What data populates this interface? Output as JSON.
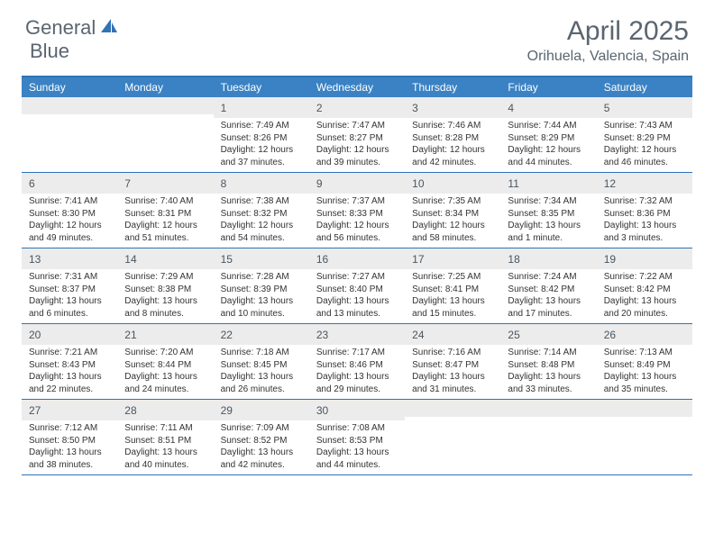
{
  "logo": {
    "part1": "General",
    "part2": "Blue"
  },
  "title": "April 2025",
  "location": "Orihuela, Valencia, Spain",
  "colors": {
    "header_bg": "#3b82c4",
    "rule": "#2f74b5",
    "daynum_bg": "#ececec",
    "text": "#333333",
    "muted": "#5a6570",
    "logo_accent": "#2f74b5"
  },
  "day_names": [
    "Sunday",
    "Monday",
    "Tuesday",
    "Wednesday",
    "Thursday",
    "Friday",
    "Saturday"
  ],
  "weeks": [
    [
      {
        "n": "",
        "lines": []
      },
      {
        "n": "",
        "lines": []
      },
      {
        "n": "1",
        "lines": [
          "Sunrise: 7:49 AM",
          "Sunset: 8:26 PM",
          "Daylight: 12 hours and 37 minutes."
        ]
      },
      {
        "n": "2",
        "lines": [
          "Sunrise: 7:47 AM",
          "Sunset: 8:27 PM",
          "Daylight: 12 hours and 39 minutes."
        ]
      },
      {
        "n": "3",
        "lines": [
          "Sunrise: 7:46 AM",
          "Sunset: 8:28 PM",
          "Daylight: 12 hours and 42 minutes."
        ]
      },
      {
        "n": "4",
        "lines": [
          "Sunrise: 7:44 AM",
          "Sunset: 8:29 PM",
          "Daylight: 12 hours and 44 minutes."
        ]
      },
      {
        "n": "5",
        "lines": [
          "Sunrise: 7:43 AM",
          "Sunset: 8:29 PM",
          "Daylight: 12 hours and 46 minutes."
        ]
      }
    ],
    [
      {
        "n": "6",
        "lines": [
          "Sunrise: 7:41 AM",
          "Sunset: 8:30 PM",
          "Daylight: 12 hours and 49 minutes."
        ]
      },
      {
        "n": "7",
        "lines": [
          "Sunrise: 7:40 AM",
          "Sunset: 8:31 PM",
          "Daylight: 12 hours and 51 minutes."
        ]
      },
      {
        "n": "8",
        "lines": [
          "Sunrise: 7:38 AM",
          "Sunset: 8:32 PM",
          "Daylight: 12 hours and 54 minutes."
        ]
      },
      {
        "n": "9",
        "lines": [
          "Sunrise: 7:37 AM",
          "Sunset: 8:33 PM",
          "Daylight: 12 hours and 56 minutes."
        ]
      },
      {
        "n": "10",
        "lines": [
          "Sunrise: 7:35 AM",
          "Sunset: 8:34 PM",
          "Daylight: 12 hours and 58 minutes."
        ]
      },
      {
        "n": "11",
        "lines": [
          "Sunrise: 7:34 AM",
          "Sunset: 8:35 PM",
          "Daylight: 13 hours and 1 minute."
        ]
      },
      {
        "n": "12",
        "lines": [
          "Sunrise: 7:32 AM",
          "Sunset: 8:36 PM",
          "Daylight: 13 hours and 3 minutes."
        ]
      }
    ],
    [
      {
        "n": "13",
        "lines": [
          "Sunrise: 7:31 AM",
          "Sunset: 8:37 PM",
          "Daylight: 13 hours and 6 minutes."
        ]
      },
      {
        "n": "14",
        "lines": [
          "Sunrise: 7:29 AM",
          "Sunset: 8:38 PM",
          "Daylight: 13 hours and 8 minutes."
        ]
      },
      {
        "n": "15",
        "lines": [
          "Sunrise: 7:28 AM",
          "Sunset: 8:39 PM",
          "Daylight: 13 hours and 10 minutes."
        ]
      },
      {
        "n": "16",
        "lines": [
          "Sunrise: 7:27 AM",
          "Sunset: 8:40 PM",
          "Daylight: 13 hours and 13 minutes."
        ]
      },
      {
        "n": "17",
        "lines": [
          "Sunrise: 7:25 AM",
          "Sunset: 8:41 PM",
          "Daylight: 13 hours and 15 minutes."
        ]
      },
      {
        "n": "18",
        "lines": [
          "Sunrise: 7:24 AM",
          "Sunset: 8:42 PM",
          "Daylight: 13 hours and 17 minutes."
        ]
      },
      {
        "n": "19",
        "lines": [
          "Sunrise: 7:22 AM",
          "Sunset: 8:42 PM",
          "Daylight: 13 hours and 20 minutes."
        ]
      }
    ],
    [
      {
        "n": "20",
        "lines": [
          "Sunrise: 7:21 AM",
          "Sunset: 8:43 PM",
          "Daylight: 13 hours and 22 minutes."
        ]
      },
      {
        "n": "21",
        "lines": [
          "Sunrise: 7:20 AM",
          "Sunset: 8:44 PM",
          "Daylight: 13 hours and 24 minutes."
        ]
      },
      {
        "n": "22",
        "lines": [
          "Sunrise: 7:18 AM",
          "Sunset: 8:45 PM",
          "Daylight: 13 hours and 26 minutes."
        ]
      },
      {
        "n": "23",
        "lines": [
          "Sunrise: 7:17 AM",
          "Sunset: 8:46 PM",
          "Daylight: 13 hours and 29 minutes."
        ]
      },
      {
        "n": "24",
        "lines": [
          "Sunrise: 7:16 AM",
          "Sunset: 8:47 PM",
          "Daylight: 13 hours and 31 minutes."
        ]
      },
      {
        "n": "25",
        "lines": [
          "Sunrise: 7:14 AM",
          "Sunset: 8:48 PM",
          "Daylight: 13 hours and 33 minutes."
        ]
      },
      {
        "n": "26",
        "lines": [
          "Sunrise: 7:13 AM",
          "Sunset: 8:49 PM",
          "Daylight: 13 hours and 35 minutes."
        ]
      }
    ],
    [
      {
        "n": "27",
        "lines": [
          "Sunrise: 7:12 AM",
          "Sunset: 8:50 PM",
          "Daylight: 13 hours and 38 minutes."
        ]
      },
      {
        "n": "28",
        "lines": [
          "Sunrise: 7:11 AM",
          "Sunset: 8:51 PM",
          "Daylight: 13 hours and 40 minutes."
        ]
      },
      {
        "n": "29",
        "lines": [
          "Sunrise: 7:09 AM",
          "Sunset: 8:52 PM",
          "Daylight: 13 hours and 42 minutes."
        ]
      },
      {
        "n": "30",
        "lines": [
          "Sunrise: 7:08 AM",
          "Sunset: 8:53 PM",
          "Daylight: 13 hours and 44 minutes."
        ]
      },
      {
        "n": "",
        "lines": []
      },
      {
        "n": "",
        "lines": []
      },
      {
        "n": "",
        "lines": []
      }
    ]
  ]
}
